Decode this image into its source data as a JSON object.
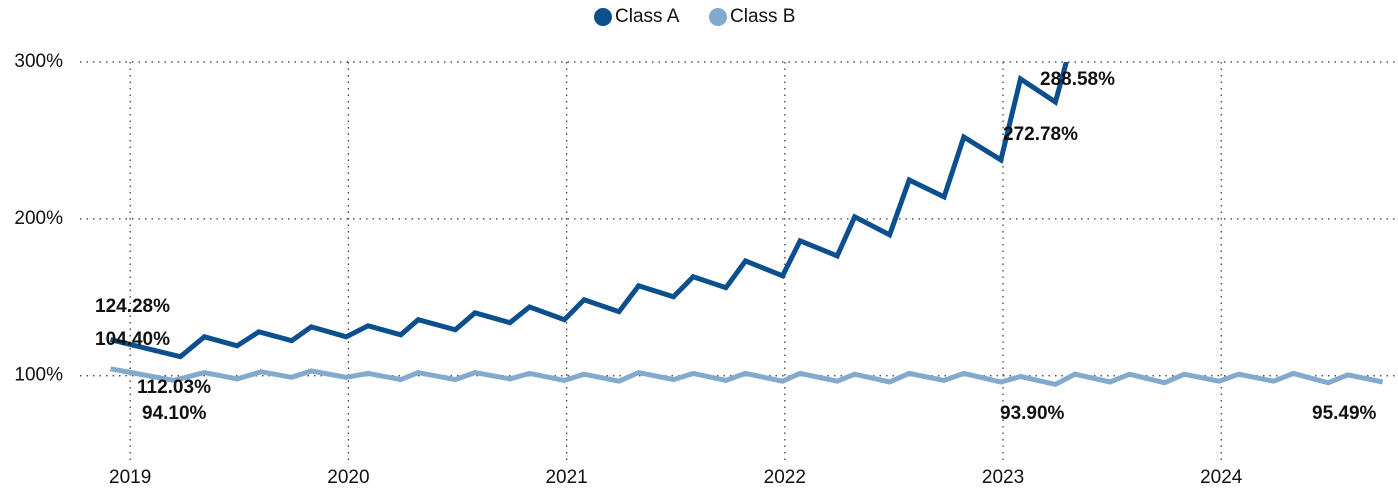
{
  "chart_data": {
    "type": "line",
    "legend": "top",
    "grid": true,
    "xlim": [
      2018.77,
      2024.81
    ],
    "xticks": [
      2019,
      2020,
      2021,
      2022,
      2023,
      2024
    ],
    "ylim": [
      45,
      300
    ],
    "yticks": [
      {
        "value": 100,
        "label": "100%"
      },
      {
        "value": 200,
        "label": "200%"
      },
      {
        "value": 300,
        "label": "300%"
      }
    ],
    "series": [
      {
        "name": "Class A",
        "color": "#0b4f8f",
        "x": [
          2018.91,
          2019.23,
          2019.34,
          2019.49,
          2019.59,
          2019.74,
          2019.83,
          2019.99,
          2020.09,
          2020.24,
          2020.32,
          2020.49,
          2020.58,
          2020.74,
          2020.83,
          2020.99,
          2021.08,
          2021.24,
          2021.33,
          2021.49,
          2021.58,
          2021.73,
          2021.82,
          2021.99,
          2022.07,
          2022.24,
          2022.32,
          2022.48,
          2022.57,
          2022.73,
          2022.82,
          2022.99,
          2023.08,
          2023.24,
          2023.3
        ],
        "values": [
          123,
          112.1,
          124.8,
          119.1,
          128,
          122.3,
          131.2,
          124.8,
          131.8,
          126.1,
          135.7,
          129.3,
          140.1,
          133.8,
          143.9,
          135.7,
          148.4,
          140.8,
          157.3,
          150.3,
          163.1,
          156.1,
          173.2,
          163.7,
          186,
          176.4,
          201.3,
          189.8,
          224.8,
          214,
          252.2,
          237.6,
          289.2,
          274.5,
          305
        ]
      },
      {
        "name": "Class B",
        "color": "#84a9cf",
        "x": [
          2018.91,
          2019.2,
          2019.34,
          2019.49,
          2019.6,
          2019.74,
          2019.83,
          2019.99,
          2020.09,
          2020.24,
          2020.32,
          2020.49,
          2020.58,
          2020.74,
          2020.83,
          2020.99,
          2021.08,
          2021.24,
          2021.33,
          2021.49,
          2021.58,
          2021.73,
          2021.82,
          2021.99,
          2022.07,
          2022.24,
          2022.32,
          2022.48,
          2022.57,
          2022.73,
          2022.82,
          2022.99,
          2023.08,
          2023.24,
          2023.33,
          2023.49,
          2023.58,
          2023.74,
          2023.83,
          2023.99,
          2024.08,
          2024.24,
          2024.33,
          2024.49,
          2024.58,
          2024.74
        ],
        "values": [
          104.4,
          97,
          102,
          98,
          102.5,
          99,
          103,
          99,
          101.5,
          97.5,
          102,
          97.5,
          102,
          98,
          101.5,
          97,
          101,
          96.5,
          102,
          97.5,
          101.5,
          97,
          101.5,
          96.5,
          101.5,
          96.5,
          101,
          96,
          101.5,
          97,
          101.5,
          96,
          99.5,
          94.5,
          101,
          96,
          101,
          95.5,
          101,
          96.5,
          101,
          96.5,
          101.5,
          95.5,
          100.5,
          96
        ]
      }
    ],
    "annotations": [
      "124.28%",
      "104.40%",
      "112.03%",
      "94.10%",
      "288.58%",
      "272.78%",
      "93.90%",
      "95.49%"
    ]
  }
}
